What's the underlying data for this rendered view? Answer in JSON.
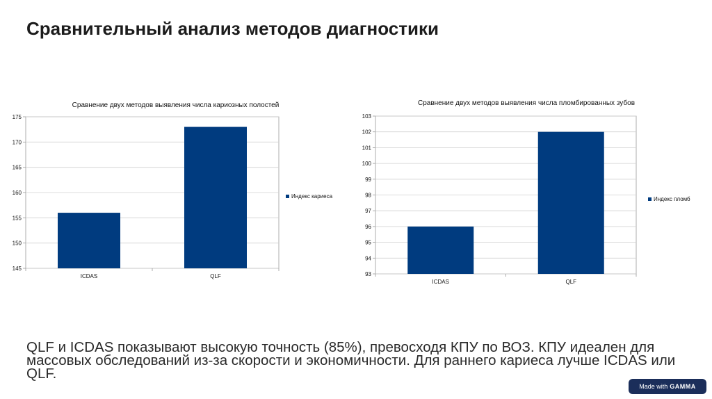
{
  "slide": {
    "title": "Сравнительный анализ методов диагностики",
    "summary": "QLF и ICDAS показывают высокую точность (85%), превосходя КПУ по ВОЗ. КПУ идеален для массовых обследований из-за скорости и экономичности. Для раннего кариеса лучше ICDAS или QLF.",
    "badge_text": "Made with",
    "badge_brand": "GAMMA"
  },
  "colors": {
    "bar": "#003b7f",
    "grid": "#d0d0d0",
    "axis": "#999999"
  },
  "chart_data": [
    {
      "type": "bar",
      "title": "Сравнение двух методов выявления числа кариозных полостей",
      "categories": [
        "ICDAS",
        "QLF"
      ],
      "series": [
        {
          "name": "Индекс кариеса",
          "values": [
            156,
            173
          ]
        }
      ],
      "ylim": [
        145,
        175
      ],
      "yticks": [
        145,
        150,
        155,
        160,
        165,
        170,
        175
      ],
      "grid": true,
      "legend": "right"
    },
    {
      "type": "bar",
      "title": "Сравнение двух методов выявления числа пломбированных зубов",
      "categories": [
        "ICDAS",
        "QLF"
      ],
      "series": [
        {
          "name": "Индекс пломб",
          "values": [
            96,
            102
          ]
        }
      ],
      "ylim": [
        93,
        103
      ],
      "yticks": [
        93,
        94,
        95,
        96,
        97,
        98,
        99,
        100,
        101,
        102,
        103
      ],
      "grid": true,
      "legend": "right"
    }
  ]
}
